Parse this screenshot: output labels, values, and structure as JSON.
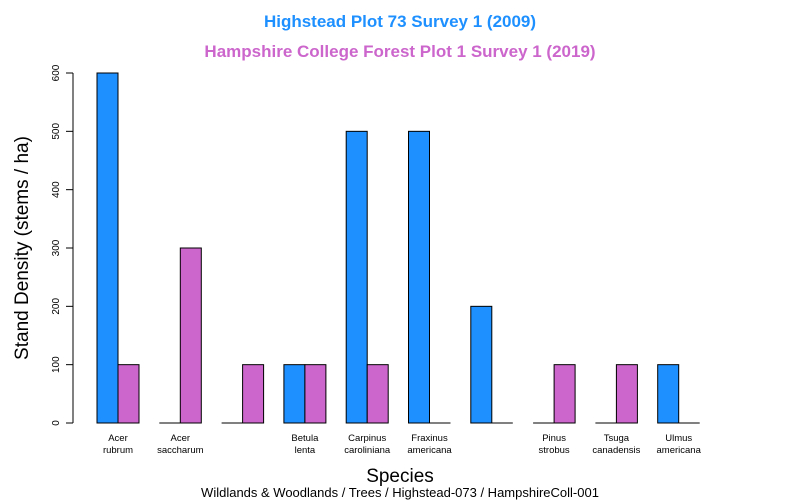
{
  "chart_data": {
    "type": "bar",
    "subtype": "grouped",
    "titles": [
      {
        "text": "Highstead  Plot 73 Survey 1 (2009)",
        "color": "#1e90ff"
      },
      {
        "text": "Hampshire College Forest  Plot 1 Survey 1 (2019)",
        "color": "#cc66cc"
      }
    ],
    "xlabel": "Species",
    "ylabel": "Stand Density (stems / ha)",
    "caption": "Wildlands & Woodlands / Trees / Highstead-073 / HampshireColl-001",
    "ylim": [
      0,
      600
    ],
    "yticks": [
      0,
      100,
      200,
      300,
      400,
      500,
      600
    ],
    "grid": false,
    "legend": "none (series identified by colored titles at top)",
    "categories": [
      [
        "Acer",
        "rubrum"
      ],
      [
        "Acer",
        "saccharum"
      ],
      [
        "",
        ""
      ],
      [
        "Betula",
        "lenta"
      ],
      [
        "Carpinus",
        "caroliniana"
      ],
      [
        "Fraxinus",
        "americana"
      ],
      [
        "",
        ""
      ],
      [
        "Pinus",
        "strobus"
      ],
      [
        "Tsuga",
        "canadensis"
      ],
      [
        "Ulmus",
        "americana"
      ]
    ],
    "series": [
      {
        "name": "Highstead  Plot 73 Survey 1 (2009)",
        "color": "#1e90ff",
        "values": [
          600,
          0,
          0,
          100,
          500,
          500,
          200,
          0,
          0,
          100
        ]
      },
      {
        "name": "Hampshire College Forest  Plot 1 Survey 1 (2019)",
        "color": "#cc66cc",
        "values": [
          100,
          300,
          100,
          100,
          100,
          0,
          0,
          100,
          100,
          0
        ]
      }
    ]
  }
}
